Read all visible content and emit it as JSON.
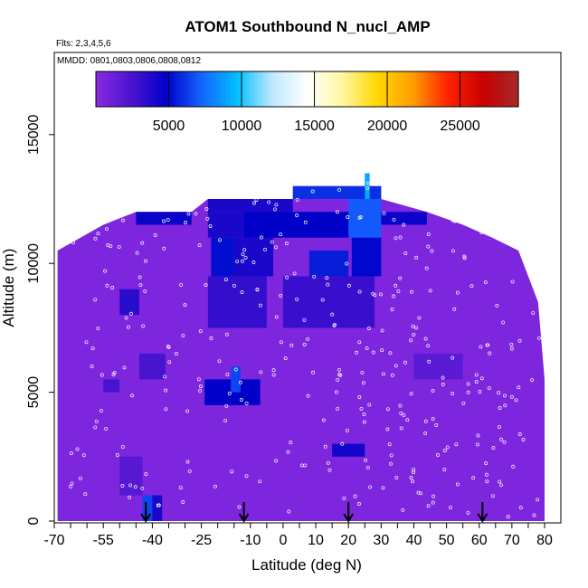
{
  "chart_data": {
    "type": "heatmap",
    "title": "ATOM1 Southbound N_nucl_AMP",
    "annotations": {
      "flights": "Flts: 2,3,4,5,6",
      "dates": "MMDD: 0801,0803,0806,0808,0812"
    },
    "xlabel": "Latitude (deg N)",
    "ylabel": "Altitude (m)",
    "xlim": [
      -70,
      85
    ],
    "ylim": [
      0,
      17500
    ],
    "x_ticks": [
      -70,
      -55,
      -40,
      -25,
      -10,
      0,
      10,
      20,
      30,
      40,
      50,
      60,
      70,
      80
    ],
    "x_tick_labels": [
      "-70",
      "-55",
      "-40",
      "-25",
      "-10",
      "0",
      "10",
      "20",
      "30",
      "40",
      "50",
      "60",
      "70",
      "80"
    ],
    "y_ticks": [
      0,
      5000,
      10000,
      15000
    ],
    "y_tick_labels": [
      "0",
      "5000",
      "10000",
      "15000"
    ],
    "colorbar": {
      "range": [
        0,
        29000
      ],
      "ticks": [
        5000,
        10000,
        15000,
        20000,
        25000
      ],
      "tick_labels": [
        "5000",
        "10000",
        "15000",
        "20000",
        "25000"
      ],
      "colors": [
        "#8a2be2",
        "#4b14cf",
        "#0000c8",
        "#1464ff",
        "#00bfff",
        "#bfe8ff",
        "#ffffff",
        "#fff7a0",
        "#ffd700",
        "#ff9d00",
        "#ff2200",
        "#c80000",
        "#a52a2a"
      ]
    },
    "background_value": 500,
    "envelope": [
      [
        -69,
        10500
      ],
      [
        -62,
        11000
      ],
      [
        -55,
        11500
      ],
      [
        -45,
        12000
      ],
      [
        -28,
        12000
      ],
      [
        -23,
        12500
      ],
      [
        3,
        12500
      ],
      [
        3,
        13000
      ],
      [
        30,
        13000
      ],
      [
        30,
        12500
      ],
      [
        44,
        12000
      ],
      [
        55,
        11500
      ],
      [
        64,
        11000
      ],
      [
        72,
        10500
      ],
      [
        78,
        8500
      ],
      [
        80,
        5500
      ],
      [
        80,
        0
      ],
      [
        -69,
        0
      ]
    ],
    "patches": [
      {
        "lat": [
          -23,
          3
        ],
        "alt": [
          12000,
          12500
        ],
        "value": 4000
      },
      {
        "lat": [
          3,
          30
        ],
        "alt": [
          12500,
          13000
        ],
        "value": 6000
      },
      {
        "lat": [
          -45,
          -28
        ],
        "alt": [
          11500,
          12000
        ],
        "value": 4500
      },
      {
        "lat": [
          -23,
          -12
        ],
        "alt": [
          11000,
          12000
        ],
        "value": 4000
      },
      {
        "lat": [
          -12,
          20
        ],
        "alt": [
          11000,
          12000
        ],
        "value": 4800
      },
      {
        "lat": [
          20,
          30
        ],
        "alt": [
          11000,
          12500
        ],
        "value": 7000
      },
      {
        "lat": [
          30,
          44
        ],
        "alt": [
          11500,
          12000
        ],
        "value": 4500
      },
      {
        "lat": [
          -22,
          -15
        ],
        "alt": [
          9500,
          11000
        ],
        "value": 5200
      },
      {
        "lat": [
          -15,
          -3
        ],
        "alt": [
          9500,
          11000
        ],
        "value": 4000
      },
      {
        "lat": [
          8,
          20
        ],
        "alt": [
          9500,
          10500
        ],
        "value": 5500
      },
      {
        "lat": [
          21,
          30
        ],
        "alt": [
          9500,
          11000
        ],
        "value": 5000
      },
      {
        "lat": [
          -23,
          -5
        ],
        "alt": [
          7500,
          9500
        ],
        "value": 3200
      },
      {
        "lat": [
          0,
          28
        ],
        "alt": [
          7500,
          9500
        ],
        "value": 3000
      },
      {
        "lat": [
          -24,
          -7
        ],
        "alt": [
          4500,
          5500
        ],
        "value": 4800
      },
      {
        "lat": [
          -16,
          -13
        ],
        "alt": [
          5000,
          6000
        ],
        "value": 6500
      },
      {
        "lat": [
          -50,
          -44
        ],
        "alt": [
          8000,
          9000
        ],
        "value": 3500
      },
      {
        "lat": [
          -44,
          -36
        ],
        "alt": [
          5500,
          6500
        ],
        "value": 2500
      },
      {
        "lat": [
          -55,
          -50
        ],
        "alt": [
          5000,
          5500
        ],
        "value": 2500
      },
      {
        "lat": [
          15,
          25
        ],
        "alt": [
          2500,
          3000
        ],
        "value": 4200
      },
      {
        "lat": [
          -43,
          -40
        ],
        "alt": [
          0,
          1000
        ],
        "value": 6500
      },
      {
        "lat": [
          -40,
          -37
        ],
        "alt": [
          0,
          1000
        ],
        "value": 4000
      },
      {
        "lat": [
          25,
          26.5
        ],
        "alt": [
          12500,
          13500
        ],
        "value": 9000
      },
      {
        "lat": [
          -50,
          -43
        ],
        "alt": [
          1000,
          2500
        ],
        "value": 2000
      },
      {
        "lat": [
          40,
          55
        ],
        "alt": [
          5500,
          6500
        ],
        "value": 1800
      }
    ],
    "arrows_latitude": [
      -42,
      -12,
      20,
      61
    ]
  }
}
